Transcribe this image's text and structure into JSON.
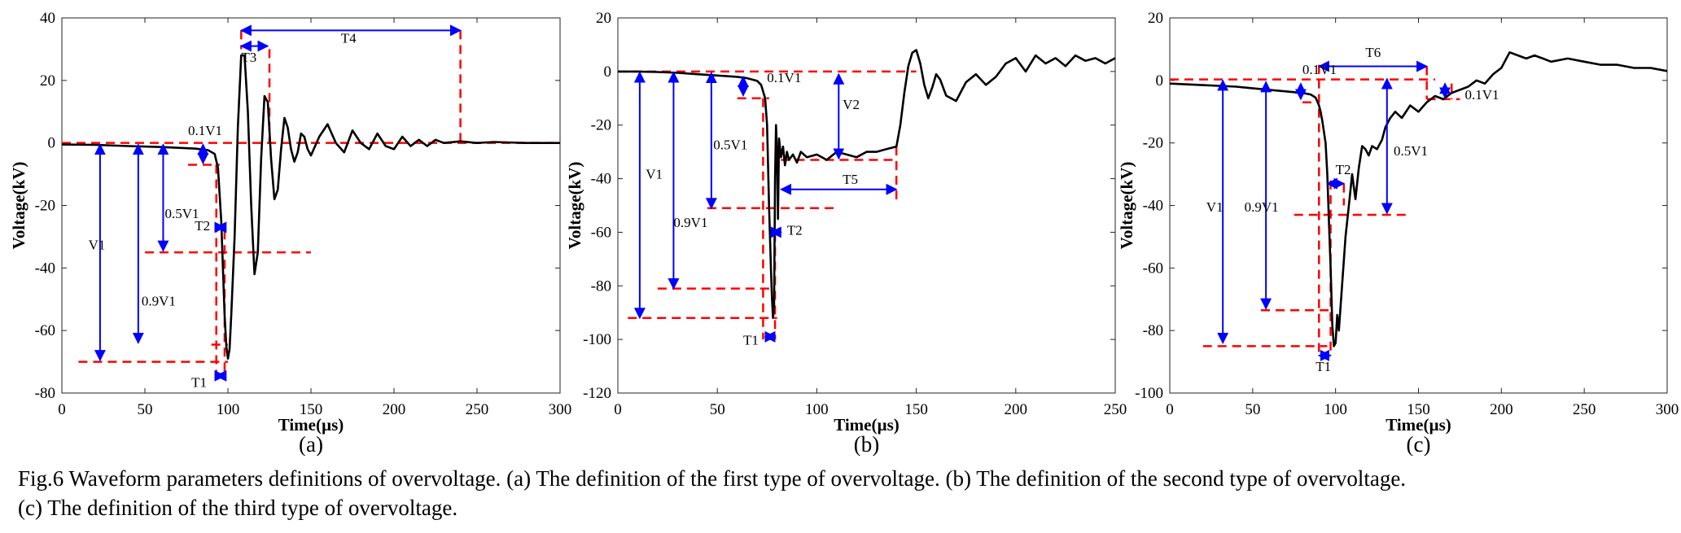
{
  "caption": {
    "line1": "Fig.6 Waveform parameters definitions of overvoltage. (a) The definition of the first type of overvoltage. (b) The definition of the second type of overvoltage.",
    "line2": "(c) The definition of the third type of overvoltage."
  },
  "colors": {
    "waveform": "#000000",
    "reference_lines": "#ff0000",
    "arrows": "#0000ff"
  },
  "chart_data": [
    {
      "type": "line",
      "panel_label": "(a)",
      "xlabel": "Time(µs)",
      "ylabel": "Voltage(kV)",
      "xlim": [
        0,
        300
      ],
      "ylim": [
        -80,
        40
      ],
      "xticks": [
        0,
        50,
        100,
        150,
        200,
        250,
        300
      ],
      "yticks": [
        -80,
        -60,
        -40,
        -20,
        0,
        20,
        40
      ],
      "grid": false,
      "series": [
        {
          "color": "#000000",
          "x": [
            0,
            20,
            40,
            60,
            80,
            88,
            92,
            94,
            96,
            98,
            99,
            100,
            101,
            102,
            104,
            106,
            108,
            110,
            112,
            114,
            116,
            118,
            120,
            122,
            124,
            126,
            128,
            130,
            132,
            134,
            136,
            138,
            140,
            142,
            144,
            146,
            148,
            150,
            155,
            160,
            165,
            170,
            175,
            180,
            185,
            190,
            195,
            200,
            205,
            210,
            215,
            220,
            225,
            230,
            240,
            250,
            260,
            280,
            300
          ],
          "y": [
            -0.5,
            -0.6,
            -1,
            -1.3,
            -1.8,
            -2.3,
            -3.5,
            -8,
            -25,
            -55,
            -65,
            -69,
            -66,
            -55,
            -30,
            5,
            28,
            28,
            10,
            -20,
            -42,
            -35,
            -5,
            15,
            13,
            -5,
            -18,
            -15,
            -2,
            8,
            5,
            -2,
            -6,
            -3,
            3,
            2,
            -2,
            -4,
            2,
            6,
            0,
            -3,
            4,
            0,
            -2,
            3,
            -1,
            -2,
            2,
            -1,
            1,
            -1,
            1,
            0,
            0.5,
            0,
            0.3,
            0,
            0
          ]
        }
      ],
      "annotations": [
        "V1",
        "0.9V1",
        "0.5V1",
        "0.1V1",
        "T1",
        "T2",
        "T3",
        "T4"
      ]
    },
    {
      "type": "line",
      "panel_label": "(b)",
      "xlabel": "Time(µs)",
      "ylabel": "Voltage(kV)",
      "xlim": [
        0,
        250
      ],
      "ylim": [
        -120,
        20
      ],
      "xticks": [
        0,
        50,
        100,
        150,
        200,
        250
      ],
      "yticks": [
        -120,
        -100,
        -80,
        -60,
        -40,
        -20,
        0,
        20
      ],
      "grid": false,
      "series": [
        {
          "color": "#000000",
          "x": [
            0,
            10,
            20,
            30,
            40,
            50,
            60,
            65,
            70,
            72,
            74,
            75,
            76,
            77,
            77.5,
            78,
            78.5,
            79,
            79.5,
            80,
            80.5,
            81,
            82,
            83,
            84,
            85,
            86,
            88,
            90,
            92,
            95,
            100,
            105,
            110,
            115,
            120,
            125,
            130,
            135,
            140,
            142,
            144,
            146,
            148,
            150,
            152,
            154,
            156,
            158,
            160,
            162,
            165,
            170,
            175,
            180,
            185,
            190,
            195,
            200,
            205,
            210,
            215,
            220,
            225,
            230,
            235,
            240,
            245,
            250
          ],
          "y": [
            0,
            0,
            -0.2,
            -0.5,
            -1,
            -1.5,
            -2,
            -2.5,
            -3.5,
            -5,
            -10,
            -20,
            -50,
            -75,
            -85,
            -92,
            -88,
            -40,
            -20,
            -30,
            -55,
            -25,
            -32,
            -28,
            -35,
            -30,
            -33,
            -31,
            -34,
            -30,
            -32,
            -31,
            -33,
            -30,
            -31,
            -32,
            -30,
            -30,
            -29,
            -28,
            -20,
            -8,
            2,
            7,
            8,
            3,
            -5,
            -10,
            -6,
            -1,
            -3,
            -9,
            -11,
            -4,
            -1,
            -5,
            -2,
            3,
            5,
            0,
            6,
            3,
            5,
            2,
            6,
            4,
            5,
            3,
            5
          ]
        }
      ],
      "annotations": [
        "V1",
        "0.9V1",
        "0.5V1",
        "0.1V1",
        "V2",
        "T1",
        "T2",
        "T5"
      ]
    },
    {
      "type": "line",
      "panel_label": "(c)",
      "xlabel": "Time(µs)",
      "ylabel": "Voltage(kV)",
      "xlim": [
        0,
        300
      ],
      "ylim": [
        -100,
        20
      ],
      "xticks": [
        0,
        50,
        100,
        150,
        200,
        250,
        300
      ],
      "yticks": [
        -100,
        -80,
        -60,
        -40,
        -20,
        0,
        20
      ],
      "grid": false,
      "series": [
        {
          "color": "#000000",
          "x": [
            0,
            20,
            40,
            60,
            80,
            85,
            88,
            90,
            91,
            92,
            94,
            95,
            96,
            97,
            98,
            99,
            100,
            101,
            102,
            104,
            106,
            108,
            110,
            112,
            114,
            116,
            118,
            120,
            122,
            125,
            128,
            130,
            133,
            136,
            140,
            145,
            150,
            155,
            160,
            165,
            170,
            175,
            180,
            185,
            190,
            195,
            200,
            205,
            210,
            215,
            220,
            225,
            230,
            240,
            250,
            260,
            270,
            280,
            290,
            300
          ],
          "y": [
            -1,
            -1.5,
            -2,
            -3,
            -4,
            -4.5,
            -5.5,
            -8,
            -10,
            -13,
            -20,
            -30,
            -45,
            -60,
            -78,
            -85,
            -84,
            -75,
            -80,
            -65,
            -50,
            -40,
            -30,
            -38,
            -28,
            -21,
            -22,
            -24,
            -21,
            -22,
            -19,
            -15,
            -12,
            -10,
            -12,
            -8,
            -10,
            -7,
            -5,
            -6,
            -4,
            -3,
            -2,
            0,
            -1,
            2,
            4,
            9,
            8,
            7,
            8,
            7,
            6,
            7,
            6,
            5,
            5,
            4,
            4,
            3
          ]
        }
      ],
      "annotations": [
        "V1",
        "0.9V1",
        "0.5V1",
        "0.1V1",
        "T1",
        "T2",
        "T6"
      ]
    }
  ]
}
